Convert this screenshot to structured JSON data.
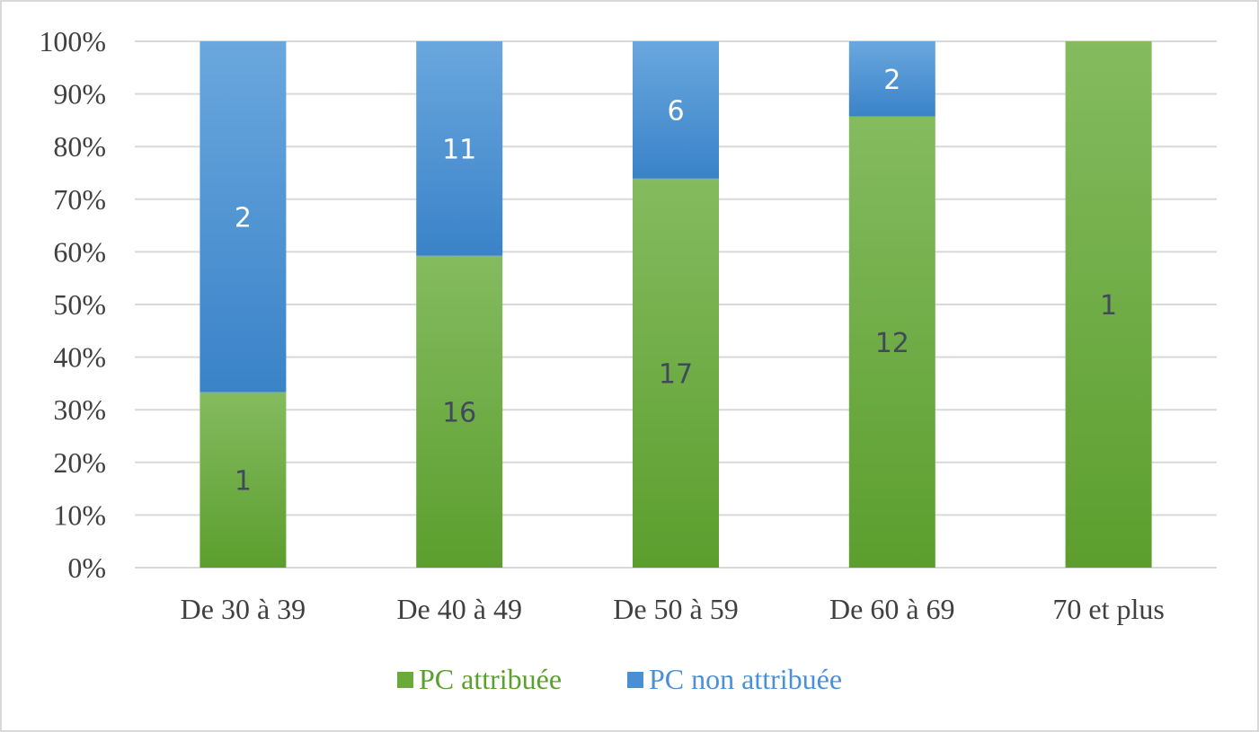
{
  "chart_data": {
    "type": "bar",
    "stacked": "percent",
    "categories": [
      "De 30 à 39",
      "De 40 à 49",
      "De 50 à 59",
      "De 60 à 69",
      "70 et plus"
    ],
    "series": [
      {
        "name": "PC attribuée",
        "values": [
          1,
          16,
          17,
          12,
          1
        ],
        "color": "#6aaa3a"
      },
      {
        "name": "PC non attribuée",
        "values": [
          2,
          11,
          6,
          2,
          0
        ],
        "color": "#4a8fd2"
      }
    ],
    "y_ticks": [
      "0%",
      "10%",
      "20%",
      "30%",
      "40%",
      "50%",
      "60%",
      "70%",
      "80%",
      "90%",
      "100%"
    ],
    "ylim": [
      0,
      100
    ],
    "grid": true,
    "legend_position": "bottom",
    "data_label_colors": {
      "PC attribuée": "#404a5a",
      "PC non attribuée": "#ffffff"
    },
    "colors": {
      "grid": "#d9d9d9",
      "axis_text": "#404040",
      "border": "#d9d9d9"
    }
  }
}
